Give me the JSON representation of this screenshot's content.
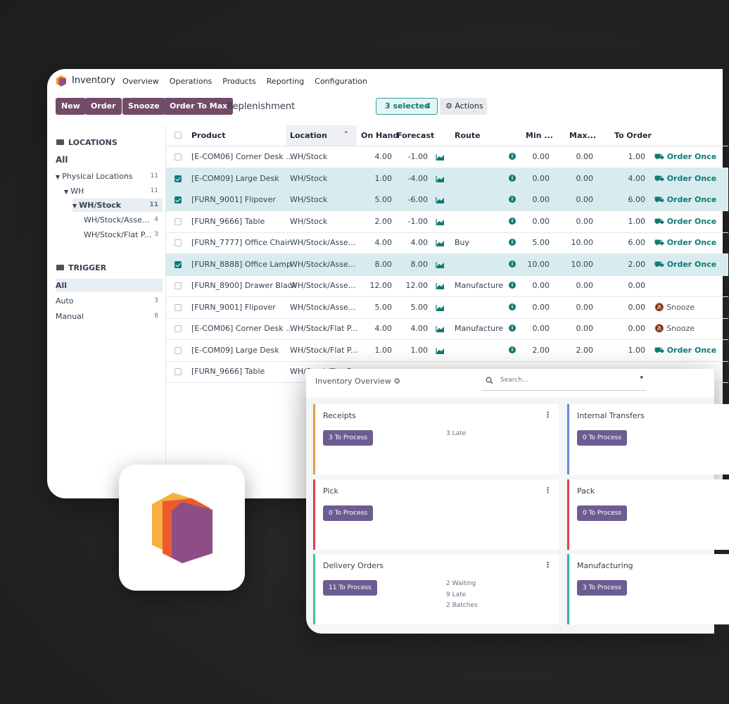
{
  "app": {
    "name": "Inventory",
    "menu": [
      "Overview",
      "Operations",
      "Products",
      "Reporting",
      "Configuration"
    ]
  },
  "toolbar": {
    "buttons": [
      "New",
      "Order",
      "Snooze",
      "Order To Max"
    ],
    "breadcrumb": "Replenishment",
    "selected_label": "3 selected",
    "actions_label": "Actions"
  },
  "sidebar": {
    "locations_header": "LOCATIONS",
    "locations": [
      {
        "label": "All",
        "count": ""
      },
      {
        "label": "Physical Locations",
        "count": "11"
      },
      {
        "label": "WH",
        "count": "11"
      },
      {
        "label": "WH/Stock",
        "count": "11"
      },
      {
        "label": "WH/Stock/Asse...",
        "count": "4"
      },
      {
        "label": "WH/Stock/Flat P...",
        "count": "3"
      }
    ],
    "trigger_header": "TRIGGER",
    "triggers": [
      {
        "label": "All",
        "count": ""
      },
      {
        "label": "Auto",
        "count": "3"
      },
      {
        "label": "Manual",
        "count": "8"
      }
    ]
  },
  "table": {
    "columns": [
      "Product",
      "Location",
      "On Hand",
      "Forecast",
      "Route",
      "Min ...",
      "Max...",
      "To Order"
    ],
    "rows": [
      {
        "selected": false,
        "product": "[E-COM06] Corner Desk ...",
        "location": "WH/Stock",
        "on_hand": "4.00",
        "forecast": "-1.00",
        "route": "",
        "min": "0.00",
        "max": "0.00",
        "to_order": "1.00",
        "action": "Order Once"
      },
      {
        "selected": true,
        "product": "[E-COM09] Large Desk",
        "location": "WH/Stock",
        "on_hand": "1.00",
        "forecast": "-4.00",
        "route": "",
        "min": "0.00",
        "max": "0.00",
        "to_order": "4.00",
        "action": "Order Once"
      },
      {
        "selected": true,
        "product": "[FURN_9001] Flipover",
        "location": "WH/Stock",
        "on_hand": "5.00",
        "forecast": "-6.00",
        "route": "",
        "min": "0.00",
        "max": "0.00",
        "to_order": "6.00",
        "action": "Order Once"
      },
      {
        "selected": false,
        "product": "[FURN_9666] Table",
        "location": "WH/Stock",
        "on_hand": "2.00",
        "forecast": "-1.00",
        "route": "",
        "min": "0.00",
        "max": "0.00",
        "to_order": "1.00",
        "action": "Order Once"
      },
      {
        "selected": false,
        "product": "[FURN_7777] Office Chair",
        "location": "WH/Stock/Asse...",
        "on_hand": "4.00",
        "forecast": "4.00",
        "route": "Buy",
        "min": "5.00",
        "max": "10.00",
        "to_order": "6.00",
        "action": "Order Once"
      },
      {
        "selected": true,
        "product": "[FURN_8888] Office Lamp",
        "location": "WH/Stock/Asse...",
        "on_hand": "8.00",
        "forecast": "8.00",
        "route": "",
        "min": "10.00",
        "max": "10.00",
        "to_order": "2.00",
        "action": "Order Once"
      },
      {
        "selected": false,
        "product": "[FURN_8900] Drawer Black",
        "location": "WH/Stock/Asse...",
        "on_hand": "12.00",
        "forecast": "12.00",
        "route": "Manufacture",
        "min": "0.00",
        "max": "0.00",
        "to_order": "0.00",
        "action": ""
      },
      {
        "selected": false,
        "product": "[FURN_9001] Flipover",
        "location": "WH/Stock/Asse...",
        "on_hand": "5.00",
        "forecast": "5.00",
        "route": "",
        "min": "0.00",
        "max": "0.00",
        "to_order": "0.00",
        "action": "Snooze"
      },
      {
        "selected": false,
        "product": "[E-COM06] Corner Desk ...",
        "location": "WH/Stock/Flat P...",
        "on_hand": "4.00",
        "forecast": "4.00",
        "route": "Manufacture",
        "min": "0.00",
        "max": "0.00",
        "to_order": "0.00",
        "action": "Snooze"
      },
      {
        "selected": false,
        "product": "[E-COM09] Large Desk",
        "location": "WH/Stock/Flat P...",
        "on_hand": "1.00",
        "forecast": "1.00",
        "route": "",
        "min": "2.00",
        "max": "2.00",
        "to_order": "1.00",
        "action": "Order Once"
      },
      {
        "selected": false,
        "product": "[FURN_9666] Table",
        "location": "WH/Stock/Flat P...",
        "on_hand": "",
        "forecast": "",
        "route": "",
        "min": "",
        "max": "",
        "to_order": "",
        "action": ""
      }
    ]
  },
  "overview": {
    "title": "Inventory Overview",
    "search_placeholder": "Search...",
    "cards": [
      {
        "title": "Receipts",
        "button": "3 To Process",
        "stats": [
          "3 Late"
        ],
        "color": "#e0a04a"
      },
      {
        "title": "Internal Transfers",
        "button": "0 To Process",
        "stats": [],
        "color": "#5b8fd9"
      },
      {
        "title": "Pick",
        "button": "0 To Process",
        "stats": [],
        "color": "#d9434a"
      },
      {
        "title": "Pack",
        "button": "0 To Process",
        "stats": [],
        "color": "#d9434a"
      },
      {
        "title": "Delivery Orders",
        "button": "11 To Process",
        "stats": [
          "2 Waiting",
          "9 Late",
          "2 Batches"
        ],
        "color": "#4cc38a"
      },
      {
        "title": "Manufacturing",
        "button": "3 To Process",
        "stats": [],
        "color": "#3fa9a0"
      }
    ]
  },
  "colors": {
    "brand": "#714b67",
    "accent": "#0e7a74",
    "process_button": "#6d5c93"
  }
}
